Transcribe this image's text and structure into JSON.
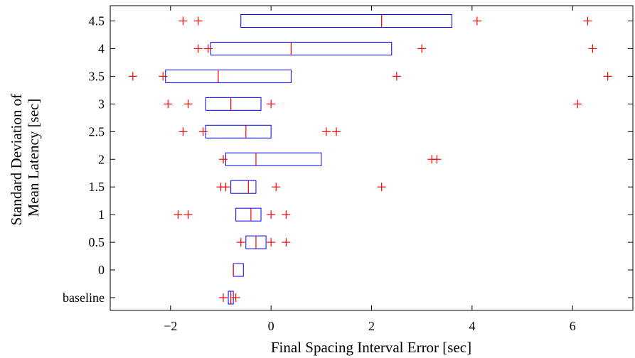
{
  "chart_data": {
    "type": "boxplot",
    "orientation": "horizontal",
    "xlabel": "Final Spacing Interval Error [sec]",
    "ylabel_lines": [
      "Standard Deviation of",
      "Mean Latency [sec]"
    ],
    "xlim": [
      -3.2,
      7.2
    ],
    "x_ticks": [
      -2,
      0,
      2,
      4,
      6
    ],
    "x_tick_labels": [
      "−2",
      "0",
      "2",
      "4",
      "6"
    ],
    "grid": false,
    "box_color": "#0000ff",
    "median_color": "#ff0000",
    "outlier_color": "#ff0000",
    "categories": [
      "baseline",
      "0",
      "0.5",
      "1",
      "1.5",
      "2",
      "2.5",
      "3",
      "3.5",
      "4",
      "4.5"
    ],
    "boxes": [
      {
        "category": "baseline",
        "q1": -0.85,
        "median": -0.8,
        "q3": -0.75,
        "outliers": [
          -0.95,
          -0.7
        ]
      },
      {
        "category": "0",
        "q1": -0.75,
        "median": -0.75,
        "q3": -0.55,
        "outliers": []
      },
      {
        "category": "0.5",
        "q1": -0.5,
        "median": -0.3,
        "q3": -0.1,
        "outliers": [
          -0.6,
          0.0,
          0.3
        ]
      },
      {
        "category": "1",
        "q1": -0.7,
        "median": -0.4,
        "q3": -0.2,
        "outliers": [
          -1.85,
          -1.65,
          0.0,
          0.3
        ]
      },
      {
        "category": "1.5",
        "q1": -0.8,
        "median": -0.45,
        "q3": -0.3,
        "outliers": [
          -1.0,
          -0.9,
          0.1,
          2.2
        ]
      },
      {
        "category": "2",
        "q1": -0.9,
        "median": -0.3,
        "q3": 1.0,
        "outliers": [
          -0.95,
          3.2,
          3.3
        ]
      },
      {
        "category": "2.5",
        "q1": -1.3,
        "median": -0.5,
        "q3": 0.0,
        "outliers": [
          -1.75,
          -1.35,
          1.1,
          1.3
        ]
      },
      {
        "category": "3",
        "q1": -1.3,
        "median": -0.8,
        "q3": -0.2,
        "outliers": [
          -2.05,
          -1.65,
          0.0,
          6.1
        ]
      },
      {
        "category": "3.5",
        "q1": -2.1,
        "median": -1.05,
        "q3": 0.4,
        "outliers": [
          -2.75,
          -2.15,
          2.5,
          6.7
        ]
      },
      {
        "category": "4",
        "q1": -1.2,
        "median": 0.4,
        "q3": 2.4,
        "outliers": [
          -1.45,
          -1.25,
          3.0,
          6.4
        ]
      },
      {
        "category": "4.5",
        "q1": -0.6,
        "median": 2.2,
        "q3": 3.6,
        "outliers": [
          -1.75,
          -1.45,
          4.1,
          6.3
        ]
      }
    ]
  }
}
